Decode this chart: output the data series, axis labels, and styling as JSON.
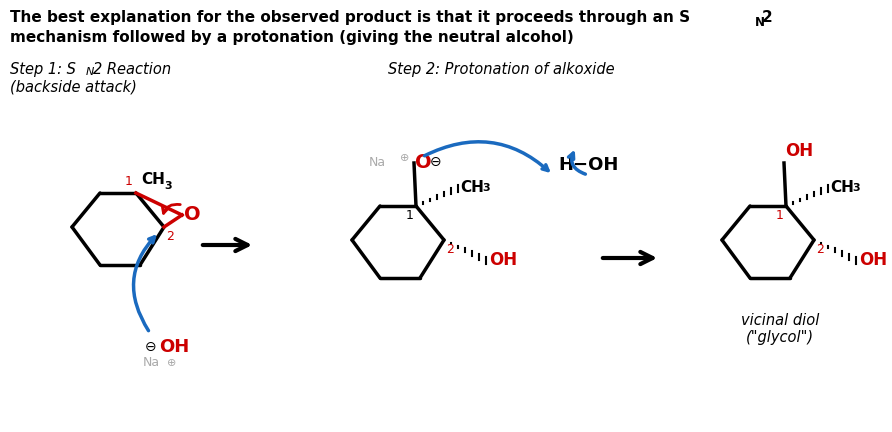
{
  "bg_color": "#ffffff",
  "black": "#000000",
  "red": "#cc0000",
  "blue": "#1a6abf",
  "gray": "#aaaaaa",
  "title_line1": "The best explanation for the observed product is that it proceeds through an S",
  "title_sub": "N",
  "title_2": "2",
  "title_line2": "mechanism followed by a protonation (giving the neutral alcohol)",
  "step1_text": "Step 1: S",
  "step1_sub": "N",
  "step1_rest": "2 Reaction",
  "step1_sub2": "(backside attack)",
  "step2_text": "Step 2: Protonation of alkoxide",
  "vicinal": "vicinal diol",
  "glycol": "(\"glycol\")"
}
